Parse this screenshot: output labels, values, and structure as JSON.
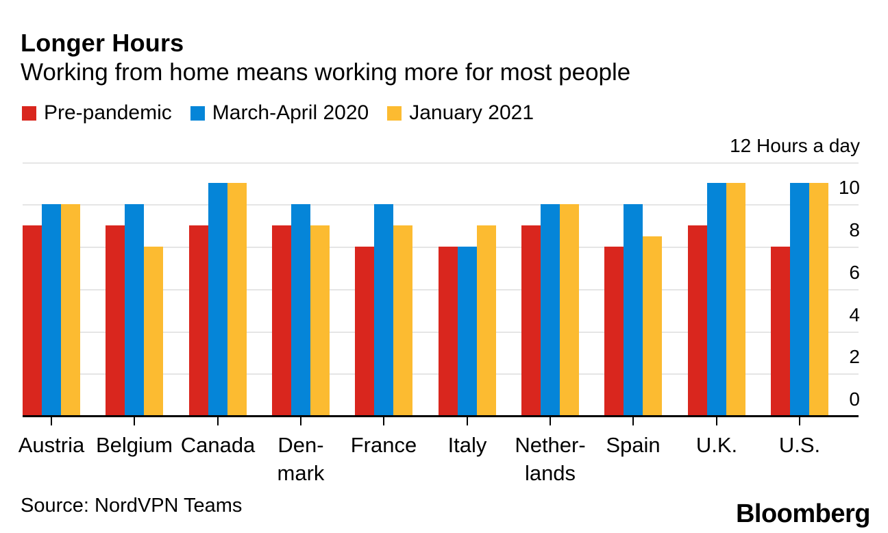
{
  "header": {
    "title": "Longer Hours",
    "subtitle": "Working from home means working more for most people"
  },
  "legend": [
    {
      "label": "Pre-pandemic",
      "color": "#d9261e",
      "swatch_icon": "red-square-swatch"
    },
    {
      "label": "March-April 2020",
      "color": "#0585d8",
      "swatch_icon": "blue-square-swatch"
    },
    {
      "label": "January 2021",
      "color": "#fcbb31",
      "swatch_icon": "yellow-square-swatch"
    }
  ],
  "chart_data": {
    "type": "bar",
    "title": "Longer Hours",
    "subtitle": "Working from home means working more for most people",
    "unit": "Hours a day",
    "ylabel_top": "12 Hours a day",
    "xlabel": "",
    "ylabel": "Hours a day",
    "ylim": [
      0,
      12
    ],
    "yticks": [
      0,
      2,
      4,
      6,
      8,
      10,
      12
    ],
    "grid": true,
    "legend_position": "top",
    "axis_side": "right",
    "categories": [
      "Austria",
      "Belgium",
      "Canada",
      "Denmark",
      "France",
      "Italy",
      "Netherlands",
      "Spain",
      "U.K.",
      "U.S."
    ],
    "category_display": [
      [
        "Austria"
      ],
      [
        "Belgium"
      ],
      [
        "Canada"
      ],
      [
        "Den-",
        "mark"
      ],
      [
        "France"
      ],
      [
        "Italy"
      ],
      [
        "Nether-",
        "lands"
      ],
      [
        "Spain"
      ],
      [
        "U.K."
      ],
      [
        "U.S."
      ]
    ],
    "series": [
      {
        "name": "Pre-pandemic",
        "color": "#d9261e",
        "values": [
          9,
          9,
          9,
          9,
          8,
          8,
          9,
          8,
          9,
          8
        ]
      },
      {
        "name": "March-April 2020",
        "color": "#0585d8",
        "values": [
          10,
          10,
          11,
          10,
          10,
          8,
          10,
          10,
          11,
          11
        ]
      },
      {
        "name": "January 2021",
        "color": "#fcbb31",
        "values": [
          10,
          8,
          11,
          9,
          9,
          9,
          10,
          8.5,
          11,
          11
        ]
      }
    ],
    "colors": {
      "gridline": "#e5e5e5",
      "axis": "#000000",
      "text": "#000000",
      "background": "#ffffff"
    }
  },
  "footer": {
    "source": "Source: NordVPN Teams",
    "logo": "Bloomberg"
  }
}
